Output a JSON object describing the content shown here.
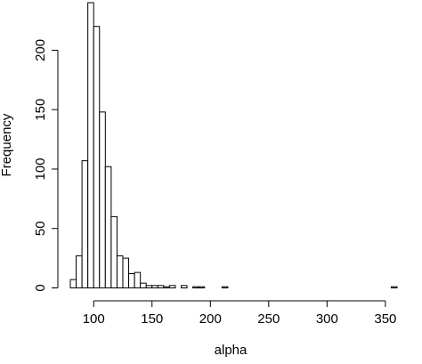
{
  "chart_data": {
    "type": "bar",
    "title": "",
    "xlabel": "alpha",
    "ylabel": "Frequency",
    "bin_width": 5,
    "xlim": [
      80,
      360
    ],
    "ylim": [
      0,
      240
    ],
    "xticks": [
      100,
      150,
      200,
      250,
      300,
      350
    ],
    "yticks": [
      0,
      50,
      100,
      150,
      200
    ],
    "bins": [
      {
        "start": 80,
        "count": 7
      },
      {
        "start": 85,
        "count": 27
      },
      {
        "start": 90,
        "count": 107
      },
      {
        "start": 95,
        "count": 240
      },
      {
        "start": 100,
        "count": 220
      },
      {
        "start": 105,
        "count": 148
      },
      {
        "start": 110,
        "count": 102
      },
      {
        "start": 115,
        "count": 60
      },
      {
        "start": 120,
        "count": 27
      },
      {
        "start": 125,
        "count": 25
      },
      {
        "start": 130,
        "count": 12
      },
      {
        "start": 135,
        "count": 13
      },
      {
        "start": 140,
        "count": 4
      },
      {
        "start": 145,
        "count": 2
      },
      {
        "start": 150,
        "count": 2
      },
      {
        "start": 155,
        "count": 2
      },
      {
        "start": 160,
        "count": 1
      },
      {
        "start": 165,
        "count": 2
      },
      {
        "start": 170,
        "count": 0
      },
      {
        "start": 175,
        "count": 2
      },
      {
        "start": 180,
        "count": 0
      },
      {
        "start": 185,
        "count": 1
      },
      {
        "start": 190,
        "count": 1
      },
      {
        "start": 210,
        "count": 1
      },
      {
        "start": 355,
        "count": 1
      }
    ],
    "grid": false,
    "legend": "none"
  }
}
